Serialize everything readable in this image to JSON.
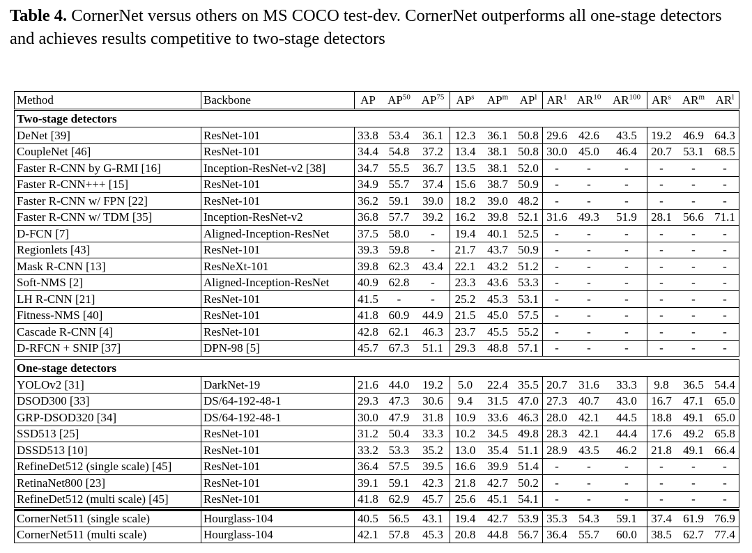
{
  "caption": {
    "label": "Table 4.",
    "text": "CornerNet versus others on MS COCO test-dev. CornerNet outperforms all one-stage detectors and achieves results competitive to two-stage detectors"
  },
  "table": {
    "header": [
      {
        "text": "Method"
      },
      {
        "text": "Backbone"
      },
      {
        "text": "AP"
      },
      {
        "text": "AP",
        "sup": "50"
      },
      {
        "text": "AP",
        "sup": "75"
      },
      {
        "text": "AP",
        "sup": "s"
      },
      {
        "text": "AP",
        "sup": "m"
      },
      {
        "text": "AP",
        "sup": "l"
      },
      {
        "text": "AR",
        "sup": "1"
      },
      {
        "text": "AR",
        "sup": "10"
      },
      {
        "text": "AR",
        "sup": "100"
      },
      {
        "text": "AR",
        "sup": "s"
      },
      {
        "text": "AR",
        "sup": "m"
      },
      {
        "text": "AR",
        "sup": "l"
      }
    ],
    "sections": [
      {
        "title": "Two-stage detectors",
        "rows": [
          [
            "DeNet [39]",
            "ResNet-101",
            "33.8",
            "53.4",
            "36.1",
            "12.3",
            "36.1",
            "50.8",
            "29.6",
            "42.6",
            "43.5",
            "19.2",
            "46.9",
            "64.3"
          ],
          [
            "CoupleNet [46]",
            "ResNet-101",
            "34.4",
            "54.8",
            "37.2",
            "13.4",
            "38.1",
            "50.8",
            "30.0",
            "45.0",
            "46.4",
            "20.7",
            "53.1",
            "68.5"
          ],
          [
            "Faster R-CNN by G-RMI [16]",
            "Inception-ResNet-v2 [38]",
            "34.7",
            "55.5",
            "36.7",
            "13.5",
            "38.1",
            "52.0",
            "-",
            "-",
            "-",
            "-",
            "-",
            "-"
          ],
          [
            "Faster R-CNN+++ [15]",
            "ResNet-101",
            "34.9",
            "55.7",
            "37.4",
            "15.6",
            "38.7",
            "50.9",
            "-",
            "-",
            "-",
            "-",
            "-",
            "-"
          ],
          [
            "Faster R-CNN w/ FPN [22]",
            "ResNet-101",
            "36.2",
            "59.1",
            "39.0",
            "18.2",
            "39.0",
            "48.2",
            "-",
            "-",
            "-",
            "-",
            "-",
            "-"
          ],
          [
            "Faster R-CNN w/ TDM [35]",
            "Inception-ResNet-v2",
            "36.8",
            "57.7",
            "39.2",
            "16.2",
            "39.8",
            "52.1",
            "31.6",
            "49.3",
            "51.9",
            "28.1",
            "56.6",
            "71.1"
          ],
          [
            "D-FCN [7]",
            "Aligned-Inception-ResNet",
            "37.5",
            "58.0",
            "-",
            "19.4",
            "40.1",
            "52.5",
            "-",
            "-",
            "-",
            "-",
            "-",
            "-"
          ],
          [
            "Regionlets [43]",
            "ResNet-101",
            "39.3",
            "59.8",
            "-",
            "21.7",
            "43.7",
            "50.9",
            "-",
            "-",
            "-",
            "-",
            "-",
            "-"
          ],
          [
            "Mask R-CNN [13]",
            "ResNeXt-101",
            "39.8",
            "62.3",
            "43.4",
            "22.1",
            "43.2",
            "51.2",
            "-",
            "-",
            "-",
            "-",
            "-",
            "-"
          ],
          [
            "Soft-NMS [2]",
            "Aligned-Inception-ResNet",
            "40.9",
            "62.8",
            "-",
            "23.3",
            "43.6",
            "53.3",
            "-",
            "-",
            "-",
            "-",
            "-",
            "-"
          ],
          [
            "LH R-CNN [21]",
            "ResNet-101",
            "41.5",
            "-",
            "-",
            "25.2",
            "45.3",
            "53.1",
            "-",
            "-",
            "-",
            "-",
            "-",
            "-"
          ],
          [
            "Fitness-NMS [40]",
            "ResNet-101",
            "41.8",
            "60.9",
            "44.9",
            "21.5",
            "45.0",
            "57.5",
            "-",
            "-",
            "-",
            "-",
            "-",
            "-"
          ],
          [
            "Cascade R-CNN [4]",
            "ResNet-101",
            "42.8",
            "62.1",
            "46.3",
            "23.7",
            "45.5",
            "55.2",
            "-",
            "-",
            "-",
            "-",
            "-",
            "-"
          ],
          [
            "D-RFCN + SNIP [37]",
            "DPN-98 [5]",
            "45.7",
            "67.3",
            "51.1",
            "29.3",
            "48.8",
            "57.1",
            "-",
            "-",
            "-",
            "-",
            "-",
            "-"
          ]
        ]
      },
      {
        "title": "One-stage detectors",
        "rows": [
          [
            "YOLOv2 [31]",
            "DarkNet-19",
            "21.6",
            "44.0",
            "19.2",
            "5.0",
            "22.4",
            "35.5",
            "20.7",
            "31.6",
            "33.3",
            "9.8",
            "36.5",
            "54.4"
          ],
          [
            "DSOD300 [33]",
            "DS/64-192-48-1",
            "29.3",
            "47.3",
            "30.6",
            "9.4",
            "31.5",
            "47.0",
            "27.3",
            "40.7",
            "43.0",
            "16.7",
            "47.1",
            "65.0"
          ],
          [
            "GRP-DSOD320 [34]",
            "DS/64-192-48-1",
            "30.0",
            "47.9",
            "31.8",
            "10.9",
            "33.6",
            "46.3",
            "28.0",
            "42.1",
            "44.5",
            "18.8",
            "49.1",
            "65.0"
          ],
          [
            "SSD513 [25]",
            "ResNet-101",
            "31.2",
            "50.4",
            "33.3",
            "10.2",
            "34.5",
            "49.8",
            "28.3",
            "42.1",
            "44.4",
            "17.6",
            "49.2",
            "65.8"
          ],
          [
            "DSSD513 [10]",
            "ResNet-101",
            "33.2",
            "53.3",
            "35.2",
            "13.0",
            "35.4",
            "51.1",
            "28.9",
            "43.5",
            "46.2",
            "21.8",
            "49.1",
            "66.4"
          ],
          [
            "RefineDet512 (single scale) [45]",
            "ResNet-101",
            "36.4",
            "57.5",
            "39.5",
            "16.6",
            "39.9",
            "51.4",
            "-",
            "-",
            "-",
            "-",
            "-",
            "-"
          ],
          [
            "RetinaNet800 [23]",
            "ResNet-101",
            "39.1",
            "59.1",
            "42.3",
            "21.8",
            "42.7",
            "50.2",
            "-",
            "-",
            "-",
            "-",
            "-",
            "-"
          ],
          [
            "RefineDet512 (multi scale) [45]",
            "ResNet-101",
            "41.8",
            "62.9",
            "45.7",
            "25.6",
            "45.1",
            "54.1",
            "-",
            "-",
            "-",
            "-",
            "-",
            "-"
          ]
        ]
      },
      {
        "rows": [
          [
            "CornerNet511 (single scale)",
            "Hourglass-104",
            "40.5",
            "56.5",
            "43.1",
            "19.4",
            "42.7",
            "53.9",
            "35.3",
            "54.3",
            "59.1",
            "37.4",
            "61.9",
            "76.9"
          ],
          [
            "CornerNet511 (multi scale)",
            "Hourglass-104",
            "42.1",
            "57.8",
            "45.3",
            "20.8",
            "44.8",
            "56.7",
            "36.4",
            "55.7",
            "60.0",
            "38.5",
            "62.7",
            "77.4"
          ]
        ]
      }
    ]
  }
}
